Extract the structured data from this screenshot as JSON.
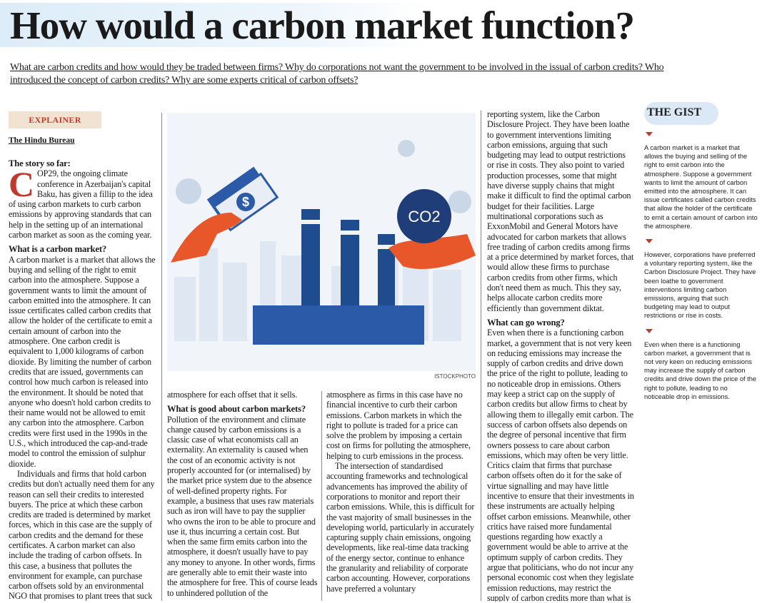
{
  "header": {
    "title": "How would a carbon market function?",
    "deck": "What are carbon credits and how would they be traded between firms? Why do corporations not want the government to be involved in the issual of carbon credits? Who introduced the concept of carbon credits? Why are some experts critical of carbon offsets?"
  },
  "article": {
    "label": "EXPLAINER",
    "byline": "The Hindu Bureau",
    "columns": [
      [
        {
          "heading": "The story so far:"
        },
        {
          "dropcap": "C",
          "text": "OP29, the ongoing climate conference in Azerbaijan's capital Baku, has given a fillip to the idea of using carbon markets to curb carbon emissions by approving standards that can help in the setting up of an international carbon market as soon as the coming year."
        },
        {
          "heading": "What is a carbon market?"
        },
        {
          "text": "A carbon market is a market that allows the buying and selling of the right to emit carbon into the atmosphere. Suppose a government wants to limit the amount of carbon emitted into the atmosphere. It can issue certificates called carbon credits that allow the holder of the certificate to emit a certain amount of carbon into the atmosphere. One carbon credit is equivalent to 1,000 kilograms of carbon dioxide. By limiting the number of carbon credits that are issued, governments can control how much carbon is released into the environment. It should be noted that anyone who doesn't hold carbon credits to their name would not be allowed to emit any carbon into the atmosphere. Carbon credits were first used in the 1990s in the U.S., which introduced the cap-and-trade model to control the emission of sulphur dioxide."
        },
        {
          "text": "Individuals and firms that hold carbon credits but don't actually need them for any reason can sell their credits to interested buyers. The price at which these carbon credits are traded is determined by market forces, which in this case are the supply of carbon credits and the demand for these certificates. A carbon market can also include the trading of carbon offsets. In this case, a business that pollutes the environment for example, can purchase carbon offsets sold by an environmental NGO that promises to plant trees that suck a certain amount of carbon emissions out of the"
        }
      ],
      [
        {
          "text": "atmosphere for each offset that it sells."
        },
        {
          "heading": "What is good about carbon markets?"
        },
        {
          "text": "Pollution of the environment and climate change caused by carbon emissions is a classic case of what economists call an externality. An externality is caused when the cost of an economic activity is not properly accounted for (or internalised) by the market price system due to the absence of well-defined property rights. For example, a business that uses raw materials such as iron will have to pay the supplier who owns the iron to be able to procure and use it, thus incurring a certain cost. But when the same firm emits carbon into the atmosphere, it doesn't usually have to pay any money to anyone. In other words, firms are generally able to emit their waste into the atmosphere for free. This of course leads to unhindered pollution of the"
        }
      ],
      [
        {
          "text": "atmosphere as firms in this case have no financial incentive to curb their carbon emissions. Carbon markets in which the right to pollute is traded for a price can solve the problem by imposing a certain cost on firms for polluting the atmosphere, helping to curb emissions in the process."
        },
        {
          "text": "The intersection of standardised accounting frameworks and technological advancements has improved the ability of corporations to monitor and report their carbon emissions. While, this is difficult for the vast majority of small businesses in the developing world, particularly in accurately capturing supply chain emissions, ongoing developments, like real-time data tracking of the energy sector, continue to enhance the granularity and reliability of corporate carbon accounting. However, corporations have preferred a voluntary"
        }
      ],
      [
        {
          "text": "reporting system, like the Carbon Disclosure Project. They have been loathe to government interventions limiting carbon emissions, arguing that such budgeting may lead to output restrictions or rise in costs. They also point to varied production processes, some that might have diverse supply chains that might make it difficult to find the optimal carbon budget for their facilities. Large multinational corporations such as ExxonMobil and General Motors have advocated for carbon markets that allows free trading of carbon credits among firms at a price determined by market forces, that would allow these firms to purchase carbon credits from other firms, which don't need them as much. This they say, helps allocate carbon credits more efficiently than government diktat."
        },
        {
          "heading": "What can go wrong?"
        },
        {
          "text": "Even when there is a functioning carbon market, a government that is not very keen on reducing emissions may increase the supply of carbon credits and drive down the price of the right to pollute, leading to no noticeable drop in emissions. Others may keep a strict cap on the supply of carbon credits but allow firms to cheat by allowing them to illegally emit carbon. The success of carbon offsets also depends on the degree of personal incentive that firm owners possess to care about carbon emissions, which may often be very little. Critics claim that firms that purchase carbon offsets often do it for the sake of virtue signalling and may have little incentive to ensure that their investments in these instruments are actually helping offset carbon emissions. Meanwhile, other critics have raised more fundamental questions regarding how exactly a government would be able to arrive at the optimum supply of carbon credits. They argue that politicians, who do not incur any personal economic cost when they legislate emission reductions, may restrict the supply of carbon credits more than what is really necessary, leading to slower economic growth."
        }
      ]
    ]
  },
  "image": {
    "label": "CO2",
    "credit": "ISTOCKPHOTO"
  },
  "gist": {
    "title": "THE GIST",
    "items": [
      "A carbon market is a market that allows the buying and selling of the right to emit carbon into the atmosphere. Suppose a government wants to limit the amount of carbon emitted into the atmosphere. It can issue certificates called carbon credits that allow the holder of the certificate to emit a certain amount of carbon into the atmosphere.",
      "However, corporations have preferred a voluntary reporting system, like the Carbon Disclosure Project. They have been loathe to government interventions limiting carbon emissions, arguing that such budgeting may lead to output restrictions or rise in costs.",
      "Even when there is a functioning carbon market, a government that is not very keen on reducing emissions may increase the supply of carbon credits and drive down the price of the right to pollute, leading to no noticeable drop in emissions."
    ]
  }
}
